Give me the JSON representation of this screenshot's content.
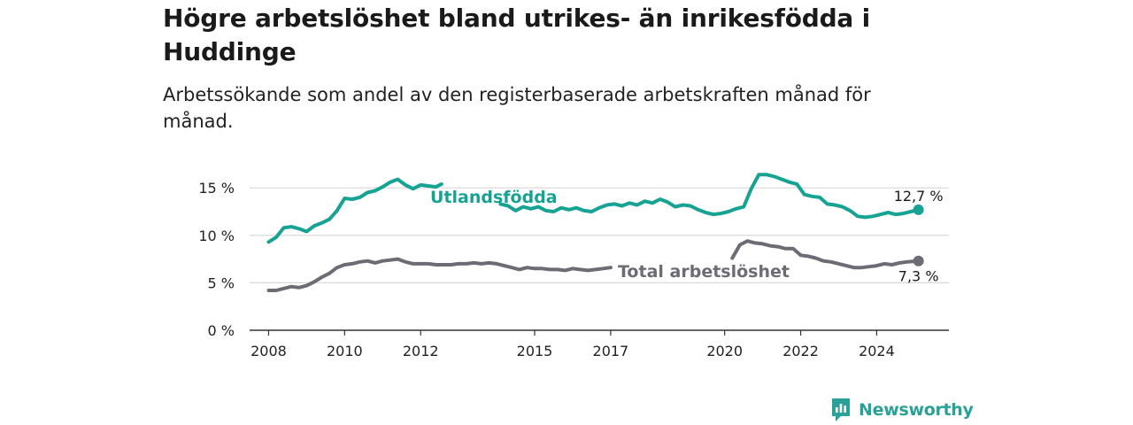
{
  "title": "Högre arbetslöshet bland utrikes- än inrikesfödda i Huddinge",
  "subtitle": "Arbetssökande som andel av den registerbaserade arbetskraften månad för månad.",
  "brand": "Newsworthy",
  "colors": {
    "foreign": "#17a394",
    "total": "#6d6b74",
    "axis": "#333333",
    "grid": "#d9d9d9",
    "brand": "#2aa198"
  },
  "chart_data": {
    "type": "line",
    "y_ticks": [
      "0 %",
      "5 %",
      "10 %",
      "15 %"
    ],
    "y_tick_values": [
      0,
      5,
      10,
      15
    ],
    "x_ticks": [
      "2008",
      "2010",
      "2012",
      "2015",
      "2017",
      "2020",
      "2022",
      "2024"
    ],
    "x_tick_values": [
      2008,
      2010,
      2012,
      2015,
      2017,
      2020,
      2022,
      2024
    ],
    "xlim": [
      2007.5,
      2025.9
    ],
    "ylim": [
      0,
      18
    ],
    "grid": true,
    "series": [
      {
        "name": "Utlandsfödda",
        "color": "foreign",
        "end_label": "12,7 %",
        "segments": [
          [
            [
              2008.0,
              9.3
            ],
            [
              2008.2,
              9.8
            ],
            [
              2008.4,
              10.8
            ],
            [
              2008.6,
              10.9
            ],
            [
              2008.8,
              10.7
            ],
            [
              2009.0,
              10.4
            ],
            [
              2009.2,
              11.0
            ],
            [
              2009.4,
              11.3
            ],
            [
              2009.6,
              11.7
            ],
            [
              2009.8,
              12.6
            ],
            [
              2010.0,
              13.9
            ],
            [
              2010.2,
              13.8
            ],
            [
              2010.4,
              14.0
            ],
            [
              2010.6,
              14.5
            ],
            [
              2010.8,
              14.7
            ],
            [
              2011.0,
              15.1
            ],
            [
              2011.2,
              15.6
            ],
            [
              2011.4,
              15.9
            ],
            [
              2011.6,
              15.3
            ],
            [
              2011.8,
              14.9
            ],
            [
              2012.0,
              15.3
            ],
            [
              2012.2,
              15.2
            ],
            [
              2012.4,
              15.1
            ],
            [
              2012.55,
              15.4
            ]
          ],
          [
            [
              2014.1,
              13.3
            ],
            [
              2014.3,
              13.1
            ],
            [
              2014.5,
              12.6
            ],
            [
              2014.7,
              13.0
            ],
            [
              2014.9,
              12.8
            ],
            [
              2015.1,
              13.0
            ],
            [
              2015.3,
              12.6
            ],
            [
              2015.5,
              12.5
            ],
            [
              2015.7,
              12.9
            ],
            [
              2015.9,
              12.7
            ],
            [
              2016.1,
              12.9
            ],
            [
              2016.3,
              12.6
            ],
            [
              2016.5,
              12.5
            ],
            [
              2016.7,
              12.9
            ],
            [
              2016.9,
              13.2
            ],
            [
              2017.1,
              13.3
            ],
            [
              2017.3,
              13.1
            ],
            [
              2017.5,
              13.4
            ],
            [
              2017.7,
              13.2
            ],
            [
              2017.9,
              13.6
            ],
            [
              2018.1,
              13.4
            ],
            [
              2018.3,
              13.8
            ],
            [
              2018.5,
              13.5
            ],
            [
              2018.7,
              13.0
            ],
            [
              2018.9,
              13.2
            ],
            [
              2019.1,
              13.1
            ],
            [
              2019.3,
              12.7
            ],
            [
              2019.5,
              12.4
            ],
            [
              2019.7,
              12.2
            ],
            [
              2019.9,
              12.3
            ],
            [
              2020.1,
              12.5
            ],
            [
              2020.3,
              12.8
            ],
            [
              2020.5,
              13.0
            ],
            [
              2020.7,
              14.9
            ],
            [
              2020.9,
              16.4
            ],
            [
              2021.1,
              16.4
            ],
            [
              2021.3,
              16.2
            ],
            [
              2021.5,
              15.9
            ],
            [
              2021.7,
              15.6
            ],
            [
              2021.9,
              15.4
            ],
            [
              2022.1,
              14.3
            ],
            [
              2022.3,
              14.1
            ],
            [
              2022.5,
              14.0
            ],
            [
              2022.7,
              13.3
            ],
            [
              2022.9,
              13.2
            ],
            [
              2023.1,
              13.0
            ],
            [
              2023.3,
              12.6
            ],
            [
              2023.5,
              12.0
            ],
            [
              2023.7,
              11.9
            ],
            [
              2023.9,
              12.0
            ],
            [
              2024.1,
              12.2
            ],
            [
              2024.3,
              12.4
            ],
            [
              2024.5,
              12.2
            ],
            [
              2024.7,
              12.3
            ],
            [
              2024.9,
              12.5
            ],
            [
              2025.1,
              12.7
            ]
          ]
        ]
      },
      {
        "name": "Total arbetslöshet",
        "color": "total",
        "end_label": "7,3 %",
        "segments": [
          [
            [
              2008.0,
              4.2
            ],
            [
              2008.2,
              4.2
            ],
            [
              2008.4,
              4.4
            ],
            [
              2008.6,
              4.6
            ],
            [
              2008.8,
              4.5
            ],
            [
              2009.0,
              4.7
            ],
            [
              2009.2,
              5.1
            ],
            [
              2009.4,
              5.6
            ],
            [
              2009.6,
              6.0
            ],
            [
              2009.8,
              6.6
            ],
            [
              2010.0,
              6.9
            ],
            [
              2010.2,
              7.0
            ],
            [
              2010.4,
              7.2
            ],
            [
              2010.6,
              7.3
            ],
            [
              2010.8,
              7.1
            ],
            [
              2011.0,
              7.3
            ],
            [
              2011.2,
              7.4
            ],
            [
              2011.4,
              7.5
            ],
            [
              2011.6,
              7.2
            ],
            [
              2011.8,
              7.0
            ],
            [
              2012.0,
              7.0
            ],
            [
              2012.2,
              7.0
            ],
            [
              2012.4,
              6.9
            ],
            [
              2012.6,
              6.9
            ],
            [
              2012.8,
              6.9
            ],
            [
              2013.0,
              7.0
            ],
            [
              2013.2,
              7.0
            ],
            [
              2013.4,
              7.1
            ],
            [
              2013.6,
              7.0
            ],
            [
              2013.8,
              7.1
            ],
            [
              2014.0,
              7.0
            ],
            [
              2014.2,
              6.8
            ],
            [
              2014.4,
              6.6
            ],
            [
              2014.6,
              6.4
            ],
            [
              2014.8,
              6.6
            ],
            [
              2015.0,
              6.5
            ],
            [
              2015.2,
              6.5
            ],
            [
              2015.4,
              6.4
            ],
            [
              2015.6,
              6.4
            ],
            [
              2015.8,
              6.3
            ],
            [
              2016.0,
              6.5
            ],
            [
              2016.2,
              6.4
            ],
            [
              2016.4,
              6.3
            ],
            [
              2016.6,
              6.4
            ],
            [
              2016.8,
              6.5
            ],
            [
              2017.0,
              6.6
            ]
          ],
          [
            [
              2020.2,
              7.6
            ],
            [
              2020.4,
              9.0
            ],
            [
              2020.6,
              9.4
            ],
            [
              2020.8,
              9.2
            ],
            [
              2021.0,
              9.1
            ],
            [
              2021.2,
              8.9
            ],
            [
              2021.4,
              8.8
            ],
            [
              2021.6,
              8.6
            ],
            [
              2021.8,
              8.6
            ],
            [
              2022.0,
              7.9
            ],
            [
              2022.2,
              7.8
            ],
            [
              2022.4,
              7.6
            ],
            [
              2022.6,
              7.3
            ],
            [
              2022.8,
              7.2
            ],
            [
              2023.0,
              7.0
            ],
            [
              2023.2,
              6.8
            ],
            [
              2023.4,
              6.6
            ],
            [
              2023.6,
              6.6
            ],
            [
              2023.8,
              6.7
            ],
            [
              2024.0,
              6.8
            ],
            [
              2024.2,
              7.0
            ],
            [
              2024.4,
              6.9
            ],
            [
              2024.6,
              7.1
            ],
            [
              2024.8,
              7.2
            ],
            [
              2025.1,
              7.3
            ]
          ]
        ]
      }
    ]
  }
}
